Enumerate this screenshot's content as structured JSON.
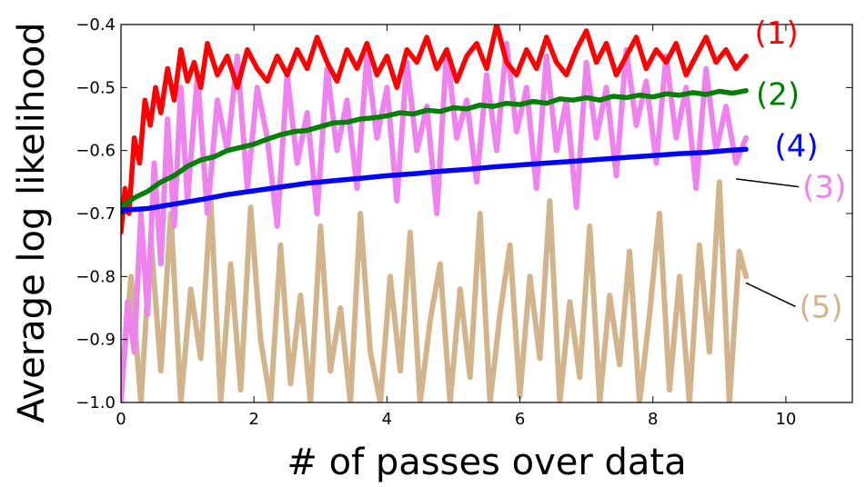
{
  "chart_data": {
    "type": "line",
    "title": "",
    "xlabel": "# of passes over data",
    "ylabel": "Average log likelihood",
    "xlim": [
      0,
      11
    ],
    "ylim": [
      -1.0,
      -0.4
    ],
    "xticks": [
      {
        "value": 0,
        "label": "0"
      },
      {
        "value": 2,
        "label": "2"
      },
      {
        "value": 4,
        "label": "4"
      },
      {
        "value": 6,
        "label": "6"
      },
      {
        "value": 8,
        "label": "8"
      },
      {
        "value": 10,
        "label": "10"
      }
    ],
    "yticks": [
      {
        "value": -1.0,
        "label": "−1.0"
      },
      {
        "value": -0.9,
        "label": "−0.9"
      },
      {
        "value": -0.8,
        "label": "−0.8"
      },
      {
        "value": -0.7,
        "label": "−0.7"
      },
      {
        "value": -0.6,
        "label": "−0.6"
      },
      {
        "value": -0.5,
        "label": "−0.5"
      },
      {
        "value": -0.4,
        "label": "−0.4"
      }
    ],
    "grid": false,
    "legend": "none",
    "series": [
      {
        "label": "(5)",
        "color": "#d2b48c",
        "label_pos": [
          10.2,
          -0.865
        ],
        "pointer_from": [
          9.4,
          -0.81
        ],
        "x": [
          0,
          0.15,
          0.3,
          0.45,
          0.6,
          0.75,
          0.9,
          1.05,
          1.2,
          1.35,
          1.5,
          1.65,
          1.8,
          1.95,
          2.1,
          2.25,
          2.4,
          2.55,
          2.7,
          2.85,
          3.0,
          3.15,
          3.3,
          3.45,
          3.6,
          3.75,
          3.9,
          4.05,
          4.2,
          4.35,
          4.5,
          4.65,
          4.8,
          4.95,
          5.1,
          5.25,
          5.4,
          5.55,
          5.7,
          5.85,
          6.0,
          6.15,
          6.3,
          6.45,
          6.6,
          6.75,
          6.9,
          7.05,
          7.2,
          7.35,
          7.5,
          7.65,
          7.8,
          7.95,
          8.1,
          8.25,
          8.4,
          8.55,
          8.7,
          8.85,
          9.0,
          9.15,
          9.3,
          9.4
        ],
        "y": [
          -0.99,
          -0.8,
          -1.0,
          -0.74,
          -0.95,
          -0.7,
          -1.0,
          -0.82,
          -0.93,
          -0.68,
          -1.0,
          -0.78,
          -0.98,
          -0.69,
          -0.9,
          -1.0,
          -0.75,
          -0.97,
          -0.83,
          -1.0,
          -0.72,
          -0.95,
          -0.85,
          -1.0,
          -0.7,
          -0.92,
          -1.0,
          -0.8,
          -0.95,
          -0.73,
          -1.0,
          -0.87,
          -0.78,
          -1.0,
          -0.82,
          -0.96,
          -0.7,
          -1.0,
          -0.86,
          -0.75,
          -0.99,
          -0.8,
          -0.93,
          -0.68,
          -1.0,
          -0.84,
          -0.96,
          -0.72,
          -1.0,
          -0.83,
          -0.94,
          -0.76,
          -1.0,
          -0.86,
          -0.7,
          -0.98,
          -0.8,
          -1.0,
          -0.75,
          -0.92,
          -0.65,
          -1.0,
          -0.76,
          -0.8
        ]
      },
      {
        "label": "(3)",
        "color": "#ee82ee",
        "label_pos": [
          10.25,
          -0.675
        ],
        "pointer_from": [
          9.25,
          -0.645
        ],
        "x": [
          0,
          0.1,
          0.2,
          0.3,
          0.4,
          0.5,
          0.6,
          0.7,
          0.8,
          0.9,
          1.0,
          1.15,
          1.3,
          1.45,
          1.6,
          1.75,
          1.9,
          2.05,
          2.2,
          2.35,
          2.5,
          2.65,
          2.8,
          2.95,
          3.1,
          3.25,
          3.4,
          3.55,
          3.7,
          3.85,
          4.0,
          4.15,
          4.3,
          4.45,
          4.6,
          4.75,
          4.9,
          5.05,
          5.2,
          5.35,
          5.5,
          5.65,
          5.8,
          5.95,
          6.1,
          6.25,
          6.4,
          6.55,
          6.7,
          6.85,
          7.0,
          7.15,
          7.3,
          7.45,
          7.6,
          7.75,
          7.9,
          8.05,
          8.2,
          8.35,
          8.5,
          8.65,
          8.8,
          8.95,
          9.1,
          9.25,
          9.4
        ],
        "y": [
          -1.0,
          -0.84,
          -0.92,
          -0.7,
          -0.86,
          -0.62,
          -0.78,
          -0.55,
          -0.72,
          -0.5,
          -0.68,
          -0.48,
          -0.7,
          -0.52,
          -0.6,
          -0.45,
          -0.66,
          -0.5,
          -0.58,
          -0.72,
          -0.48,
          -0.62,
          -0.54,
          -0.7,
          -0.47,
          -0.6,
          -0.52,
          -0.66,
          -0.45,
          -0.58,
          -0.5,
          -0.68,
          -0.46,
          -0.6,
          -0.53,
          -0.7,
          -0.44,
          -0.58,
          -0.52,
          -0.65,
          -0.48,
          -0.6,
          -0.43,
          -0.57,
          -0.5,
          -0.66,
          -0.45,
          -0.6,
          -0.52,
          -0.69,
          -0.46,
          -0.58,
          -0.5,
          -0.64,
          -0.44,
          -0.56,
          -0.49,
          -0.62,
          -0.45,
          -0.58,
          -0.5,
          -0.66,
          -0.47,
          -0.6,
          -0.53,
          -0.62,
          -0.58
        ]
      },
      {
        "label": "(1)",
        "color": "#ff0000",
        "label_pos": [
          9.53,
          -0.43
        ],
        "pointer_from": null,
        "x": [
          0,
          0.06,
          0.12,
          0.2,
          0.28,
          0.36,
          0.44,
          0.52,
          0.6,
          0.7,
          0.8,
          0.9,
          1.0,
          1.1,
          1.2,
          1.3,
          1.45,
          1.6,
          1.75,
          1.9,
          2.05,
          2.2,
          2.35,
          2.5,
          2.65,
          2.8,
          2.95,
          3.1,
          3.25,
          3.4,
          3.55,
          3.7,
          3.85,
          4.0,
          4.15,
          4.3,
          4.45,
          4.6,
          4.75,
          4.9,
          5.05,
          5.2,
          5.35,
          5.5,
          5.65,
          5.8,
          5.95,
          6.1,
          6.25,
          6.4,
          6.55,
          6.7,
          6.85,
          7.0,
          7.15,
          7.3,
          7.45,
          7.6,
          7.75,
          7.9,
          8.05,
          8.2,
          8.35,
          8.5,
          8.65,
          8.8,
          8.95,
          9.1,
          9.25,
          9.4
        ],
        "y": [
          -0.73,
          -0.66,
          -0.7,
          -0.58,
          -0.62,
          -0.52,
          -0.56,
          -0.5,
          -0.54,
          -0.47,
          -0.52,
          -0.44,
          -0.49,
          -0.46,
          -0.5,
          -0.43,
          -0.48,
          -0.45,
          -0.5,
          -0.44,
          -0.47,
          -0.49,
          -0.45,
          -0.48,
          -0.44,
          -0.47,
          -0.42,
          -0.46,
          -0.49,
          -0.44,
          -0.47,
          -0.43,
          -0.48,
          -0.45,
          -0.5,
          -0.44,
          -0.46,
          -0.42,
          -0.47,
          -0.44,
          -0.49,
          -0.45,
          -0.43,
          -0.47,
          -0.4,
          -0.46,
          -0.48,
          -0.44,
          -0.47,
          -0.42,
          -0.46,
          -0.48,
          -0.44,
          -0.41,
          -0.46,
          -0.43,
          -0.48,
          -0.45,
          -0.42,
          -0.47,
          -0.44,
          -0.46,
          -0.43,
          -0.48,
          -0.45,
          -0.42,
          -0.46,
          -0.44,
          -0.47,
          -0.45
        ]
      },
      {
        "label": "(2)",
        "color": "#008000",
        "label_pos": [
          9.55,
          -0.528
        ],
        "pointer_from": null,
        "x": [
          0,
          0.2,
          0.4,
          0.6,
          0.8,
          1.0,
          1.2,
          1.4,
          1.6,
          1.8,
          2.0,
          2.2,
          2.4,
          2.6,
          2.8,
          3.0,
          3.2,
          3.4,
          3.6,
          3.8,
          4.0,
          4.2,
          4.4,
          4.6,
          4.8,
          5.0,
          5.2,
          5.4,
          5.6,
          5.8,
          6.0,
          6.2,
          6.4,
          6.6,
          6.8,
          7.0,
          7.2,
          7.4,
          7.6,
          7.8,
          8.0,
          8.2,
          8.4,
          8.6,
          8.8,
          9.0,
          9.2,
          9.4
        ],
        "y": [
          -0.69,
          -0.675,
          -0.665,
          -0.65,
          -0.64,
          -0.625,
          -0.615,
          -0.61,
          -0.6,
          -0.595,
          -0.59,
          -0.582,
          -0.575,
          -0.57,
          -0.568,
          -0.562,
          -0.556,
          -0.555,
          -0.55,
          -0.548,
          -0.545,
          -0.54,
          -0.542,
          -0.536,
          -0.538,
          -0.532,
          -0.534,
          -0.528,
          -0.53,
          -0.525,
          -0.527,
          -0.522,
          -0.525,
          -0.518,
          -0.52,
          -0.516,
          -0.52,
          -0.514,
          -0.516,
          -0.512,
          -0.515,
          -0.51,
          -0.512,
          -0.508,
          -0.511,
          -0.506,
          -0.509,
          -0.505
        ]
      },
      {
        "label": "(4)",
        "color": "#0000ff",
        "label_pos": [
          9.83,
          -0.61
        ],
        "pointer_from": null,
        "x": [
          0,
          0.4,
          0.8,
          1.2,
          1.6,
          2.0,
          2.4,
          2.8,
          3.2,
          3.6,
          4.0,
          4.4,
          4.8,
          5.2,
          5.6,
          6.0,
          6.4,
          6.8,
          7.2,
          7.6,
          8.0,
          8.4,
          8.8,
          9.1,
          9.4
        ],
        "y": [
          -0.695,
          -0.692,
          -0.685,
          -0.678,
          -0.67,
          -0.664,
          -0.658,
          -0.652,
          -0.648,
          -0.644,
          -0.64,
          -0.637,
          -0.633,
          -0.63,
          -0.626,
          -0.623,
          -0.62,
          -0.617,
          -0.614,
          -0.611,
          -0.608,
          -0.605,
          -0.603,
          -0.6,
          -0.598
        ]
      }
    ]
  }
}
